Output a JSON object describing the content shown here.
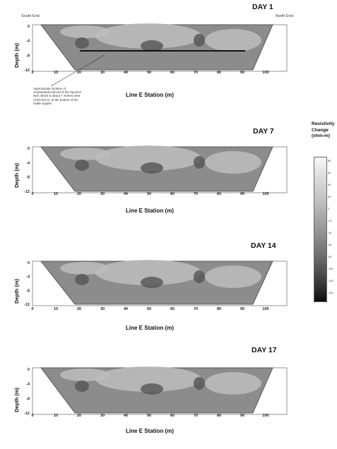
{
  "panels": [
    {
      "day": "DAY 1",
      "ylabel": "Depth (m)",
      "xlabel": "Line E Station (m)",
      "left_label": "South End",
      "right_label": "North End",
      "y_ticks": [
        "0",
        "-4",
        "-8",
        "-12"
      ],
      "x_ticks": [
        "0",
        "10",
        "20",
        "30",
        "40",
        "50",
        "60",
        "70",
        "80",
        "90",
        "100"
      ]
    },
    {
      "day": "DAY 7",
      "ylabel": "Depth (m)",
      "xlabel": "Line E Station (m)",
      "y_ticks": [
        "0",
        "-4",
        "-8",
        "-12"
      ],
      "x_ticks": [
        "0",
        "10",
        "20",
        "30",
        "40",
        "50",
        "60",
        "70",
        "80",
        "90",
        "100"
      ]
    },
    {
      "day": "DAY 14",
      "ylabel": "Depth (m)",
      "xlabel": "Line E Station (m)",
      "y_ticks": [
        "0",
        "-4",
        "-8",
        "-12"
      ],
      "x_ticks": [
        "0",
        "10",
        "20",
        "30",
        "40",
        "50",
        "60",
        "70",
        "80",
        "90",
        "100"
      ]
    },
    {
      "day": "DAY 17",
      "ylabel": "Depth (m)",
      "xlabel": "Line E Station (m)",
      "y_ticks": [
        "0",
        "-4",
        "-8",
        "-12"
      ],
      "x_ticks": [
        "0",
        "10",
        "20",
        "30",
        "40",
        "50",
        "60",
        "70",
        "80",
        "90",
        "100"
      ]
    }
  ],
  "annotation": "Approximate location of unsaturated interval of the injection well, which is about 7 meters west of the line E, at the bottom of the Gable aquifer.",
  "legend": {
    "title_lines": [
      "Resistivity",
      "Change",
      "(ohm-m)"
    ],
    "ticks": [
      "80",
      "60",
      "40",
      "20",
      "0",
      "-20",
      "-40",
      "-60",
      "-80",
      "-100",
      "-120",
      "-140"
    ]
  },
  "colors": {
    "background": "#ffffff",
    "section_base": "#8c8c8c",
    "light_zone": "#bdbdbd",
    "dark_zone": "#555555",
    "line": "#111111"
  }
}
